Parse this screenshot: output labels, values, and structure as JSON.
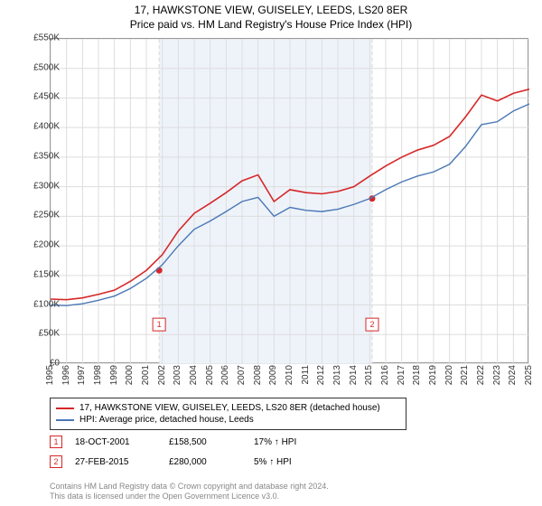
{
  "title": "17, HAWKSTONE VIEW, GUISELEY, LEEDS, LS20 8ER",
  "subtitle": "Price paid vs. HM Land Registry's House Price Index (HPI)",
  "chart": {
    "type": "line",
    "background_color": "#ffffff",
    "grid_color": "#dddddd",
    "axis_color": "#999999",
    "shaded_band_color": "#eef3fa",
    "vline_color": "#d9d9d9",
    "vline_dash": "4,3",
    "title_fontsize": 12,
    "label_fontsize": 10,
    "xlim": [
      1995,
      2025
    ],
    "ylim": [
      0,
      550000
    ],
    "ytick_step": 50000,
    "xtick_step": 1,
    "series": [
      {
        "name": "property",
        "label": "17, HAWKSTONE VIEW, GUISELEY, LEEDS, LS20 8ER (detached house)",
        "color": "#d62728",
        "width": 1.6,
        "points": [
          [
            1995,
            110000
          ],
          [
            1996,
            109000
          ],
          [
            1997,
            112000
          ],
          [
            1998,
            118000
          ],
          [
            1999,
            125000
          ],
          [
            2000,
            140000
          ],
          [
            2001,
            158500
          ],
          [
            2002,
            185000
          ],
          [
            2003,
            225000
          ],
          [
            2004,
            255000
          ],
          [
            2005,
            272000
          ],
          [
            2006,
            290000
          ],
          [
            2007,
            310000
          ],
          [
            2008,
            320000
          ],
          [
            2009,
            275000
          ],
          [
            2010,
            295000
          ],
          [
            2011,
            290000
          ],
          [
            2012,
            288000
          ],
          [
            2013,
            292000
          ],
          [
            2014,
            300000
          ],
          [
            2015,
            318000
          ],
          [
            2016,
            335000
          ],
          [
            2017,
            350000
          ],
          [
            2018,
            362000
          ],
          [
            2019,
            370000
          ],
          [
            2020,
            385000
          ],
          [
            2021,
            418000
          ],
          [
            2022,
            455000
          ],
          [
            2023,
            445000
          ],
          [
            2024,
            458000
          ],
          [
            2025,
            465000
          ]
        ]
      },
      {
        "name": "hpi",
        "label": "HPI: Average price, detached house, Leeds",
        "color": "#4a78b5",
        "width": 1.4,
        "points": [
          [
            1995,
            100000
          ],
          [
            1996,
            99000
          ],
          [
            1997,
            102000
          ],
          [
            1998,
            108000
          ],
          [
            1999,
            115000
          ],
          [
            2000,
            128000
          ],
          [
            2001,
            145000
          ],
          [
            2002,
            168000
          ],
          [
            2003,
            200000
          ],
          [
            2004,
            228000
          ],
          [
            2005,
            242000
          ],
          [
            2006,
            258000
          ],
          [
            2007,
            275000
          ],
          [
            2008,
            282000
          ],
          [
            2009,
            250000
          ],
          [
            2010,
            265000
          ],
          [
            2011,
            260000
          ],
          [
            2012,
            258000
          ],
          [
            2013,
            262000
          ],
          [
            2014,
            270000
          ],
          [
            2015,
            280000
          ],
          [
            2016,
            295000
          ],
          [
            2017,
            308000
          ],
          [
            2018,
            318000
          ],
          [
            2019,
            325000
          ],
          [
            2020,
            338000
          ],
          [
            2021,
            368000
          ],
          [
            2022,
            405000
          ],
          [
            2023,
            410000
          ],
          [
            2024,
            428000
          ],
          [
            2025,
            440000
          ]
        ]
      }
    ],
    "sale_markers": [
      {
        "index": "1",
        "x": 2001.8,
        "y": 158500,
        "color": "#d62728",
        "box_y": 67000
      },
      {
        "index": "2",
        "x": 2015.15,
        "y": 280000,
        "color": "#d62728",
        "box_y": 67000
      }
    ],
    "y_tick_labels": [
      "£0",
      "£50K",
      "£100K",
      "£150K",
      "£200K",
      "£250K",
      "£300K",
      "£350K",
      "£400K",
      "£450K",
      "£500K",
      "£550K"
    ],
    "x_tick_labels": [
      "1995",
      "1996",
      "1997",
      "1998",
      "1999",
      "2000",
      "2001",
      "2002",
      "2003",
      "2004",
      "2005",
      "2006",
      "2007",
      "2008",
      "2009",
      "2010",
      "2011",
      "2012",
      "2013",
      "2014",
      "2015",
      "2016",
      "2017",
      "2018",
      "2019",
      "2020",
      "2021",
      "2022",
      "2023",
      "2024",
      "2025"
    ]
  },
  "sales": [
    {
      "index": "1",
      "date": "18-OCT-2001",
      "price": "£158,500",
      "delta": "17% ↑ HPI",
      "color": "#d62728"
    },
    {
      "index": "2",
      "date": "27-FEB-2015",
      "price": "£280,000",
      "delta": "5% ↑ HPI",
      "color": "#d62728"
    }
  ],
  "attribution_line1": "Contains HM Land Registry data © Crown copyright and database right 2024.",
  "attribution_line2": "This data is licensed under the Open Government Licence v3.0."
}
